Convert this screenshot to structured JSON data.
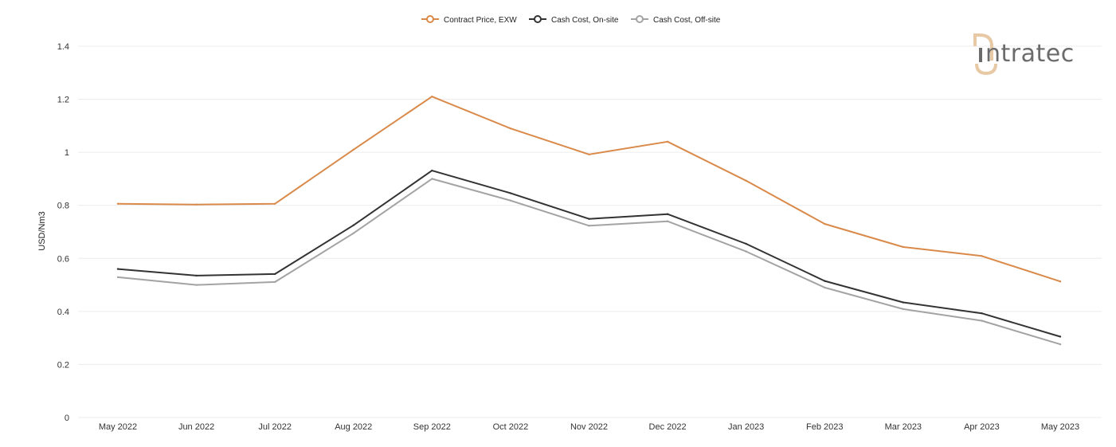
{
  "chart_data": {
    "type": "line",
    "title": "",
    "xlabel": "",
    "ylabel": "USD/Nm3",
    "ylim": [
      0,
      1.4
    ],
    "yticks": [
      "0",
      "0.2",
      "0.4",
      "0.6",
      "0.8",
      "1",
      "1.2",
      "1.4"
    ],
    "grid": true,
    "legend_position": "top-center",
    "categories": [
      "May 2022",
      "Jun 2022",
      "Jul 2022",
      "Aug 2022",
      "Sep 2022",
      "Oct 2022",
      "Nov 2022",
      "Dec 2022",
      "Jan 2023",
      "Feb 2023",
      "Mar 2023",
      "Apr 2023",
      "May 2023"
    ],
    "series": [
      {
        "name": "Contract Price, EXW",
        "color": "#d98a4a",
        "values": [
          0.806,
          0.803,
          0.806,
          1.01,
          1.21,
          1.09,
          0.992,
          1.04,
          0.893,
          0.73,
          0.643,
          0.609,
          0.513
        ]
      },
      {
        "name": "Cash Cost, On-site",
        "color": "#333333",
        "values": [
          0.56,
          0.535,
          0.541,
          0.725,
          0.931,
          0.846,
          0.749,
          0.767,
          0.655,
          0.515,
          0.434,
          0.393,
          0.305
        ]
      },
      {
        "name": "Cash Cost, Off-site",
        "color": "#a3a3a3",
        "values": [
          0.529,
          0.5,
          0.511,
          0.695,
          0.9,
          0.818,
          0.723,
          0.74,
          0.626,
          0.49,
          0.409,
          0.365,
          0.276
        ]
      }
    ]
  },
  "brand": {
    "logo_text": "ntratec",
    "logo_alt": "intratec",
    "accent": "#e8c9a6"
  }
}
